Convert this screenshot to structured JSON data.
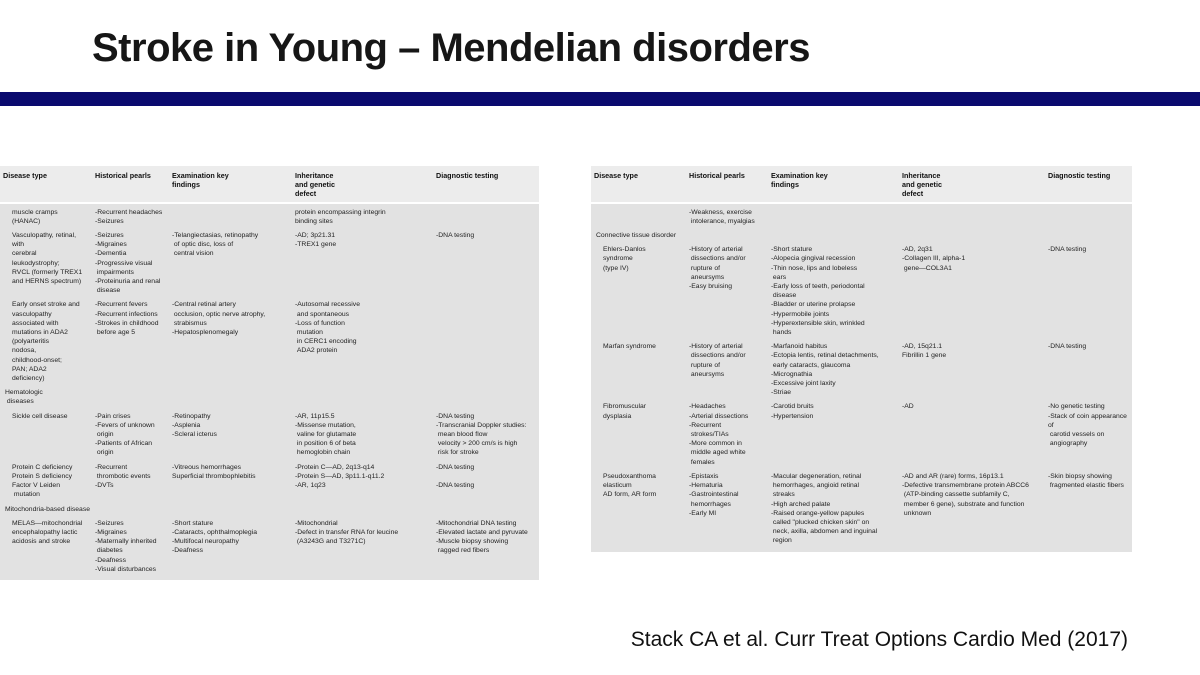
{
  "slide": {
    "title": "Stroke in Young – Mendelian disorders",
    "citation": "Stack CA et al. Curr Treat Options Cardio Med (2017)",
    "accent_bar_color": "#0a0a6e",
    "table_header_bg": "#ececec",
    "table_body_bg": "#e2e2e2"
  },
  "table_headers": [
    "Disease type",
    "Historical pearls",
    "Examination key\nfindings",
    "Inheritance\nand genetic\ndefect",
    "Diagnostic testing"
  ],
  "column_names": [
    "disease-type",
    "historical-pearls",
    "examination-key-findings",
    "inheritance-genetic-defect",
    "diagnostic-testing"
  ],
  "tables": [
    {
      "id": "left",
      "rows": [
        {
          "section": false,
          "cells": [
            "muscle cramps\n(HANAC)",
            "-Recurrent headaches\n-Seizures",
            "",
            "protein encompassing integrin\nbinding sites",
            ""
          ]
        },
        {
          "section": false,
          "cells": [
            "Vasculopathy, retinal,\nwith\ncerebral\nleukodystrophy;\nRVCL (formerly TREX1\nand HERNS spectrum)",
            "-Seizures\n-Migraines\n-Dementia\n-Progressive visual\n impairments\n-Proteinuria and renal\n disease",
            "-Telangiectasias, retinopathy\n of optic disc, loss of\n central vision",
            "-AD; 3p21.31\n-TREX1 gene",
            "-DNA testing"
          ]
        },
        {
          "section": false,
          "cells": [
            "Early onset stroke and\nvasculopathy\nassociated with\nmutations in ADA2\n(polyarteritis\nnodosa,\nchildhood-onset;\nPAN; ADA2\ndeficiency)",
            "-Recurrent fevers\n-Recurrent infections\n-Strokes in childhood\n before age 5",
            "-Central retinal artery\n occlusion, optic nerve atrophy,\n strabismus\n-Hepatosplenomegaly",
            "-Autosomal recessive\n and spontaneous\n-Loss of function\n mutation\n in CERC1 encoding\n ADA2 protein",
            ""
          ]
        },
        {
          "section": true,
          "cells": [
            "Hematologic\n diseases",
            "",
            "",
            "",
            ""
          ]
        },
        {
          "section": false,
          "cells": [
            "Sickle cell disease",
            "-Pain crises\n-Fevers of unknown\n origin\n-Patients of African\n origin",
            "-Retinopathy\n-Asplenia\n-Scleral icterus",
            "-AR, 11p15.5\n-Missense mutation,\n valine for glutamate\n in position 6 of beta\n hemoglobin chain",
            "-DNA testing\n-Transcranial Doppler studies:\n mean blood flow\n velocity > 200 cm/s is high\n risk for stroke"
          ]
        },
        {
          "section": false,
          "cells": [
            "Protein C deficiency\nProtein S deficiency\nFactor V Leiden\n mutation",
            "-Recurrent\n thrombotic events\n-DVTs",
            "-Vitreous hemorrhages\nSuperficial thrombophlebitis",
            "-Protein C—AD, 2q13-q14\n-Protein S—AD, 3p11.1-q11.2\n-AR, 1q23",
            "-DNA testing\n\n-DNA testing"
          ]
        },
        {
          "section": true,
          "cells": [
            "Mitochondria-based disease",
            "",
            "",
            "",
            ""
          ]
        },
        {
          "section": false,
          "cells": [
            "MELAS—mitochondrial\nencephalopathy lactic\nacidosis and stroke",
            "-Seizures\n-Migraines\n-Maternally inherited\n diabetes\n-Deafness\n-Visual disturbances",
            "-Short stature\n-Cataracts, ophthalmoplegia\n-Multifocal neuropathy\n-Deafness",
            "-Mitochondrial\n-Defect in transfer RNA for leucine\n (A3243G and T3271C)",
            "-Mitochondrial DNA testing\n-Elevated lactate and pyruvate\n-Muscle biopsy showing\n ragged red fibers"
          ]
        }
      ]
    },
    {
      "id": "right",
      "rows": [
        {
          "section": false,
          "cells": [
            "",
            "-Weakness, exercise\n intolerance, myalgias",
            "",
            "",
            ""
          ]
        },
        {
          "section": true,
          "cells": [
            "Connective tissue disorder",
            "",
            "",
            "",
            ""
          ]
        },
        {
          "section": false,
          "cells": [
            "Ehlers-Danlos\nsyndrome\n(type IV)",
            "-History of arterial\n dissections and/or\n rupture of\n aneursyms\n-Easy bruising",
            "-Short stature\n-Alopecia gingival recession\n-Thin nose, lips and lobeless\n ears\n-Early loss of teeth, periodontal\n disease\n-Bladder or uterine prolapse\n-Hypermobile joints\n-Hyperextensible skin, wrinkled\n hands",
            "-AD, 2q31\n-Collagen III, alpha-1\n gene—COL3A1",
            "-DNA testing"
          ]
        },
        {
          "section": false,
          "cells": [
            "Marfan syndrome",
            "-History of arterial\n dissections and/or\n rupture of\n aneursyms",
            "-Marfanoid habitus\n-Ectopia lentis, retinal detachments,\n early cataracts, glaucoma\n-Micrognathia\n-Excessive joint laxity\n-Striae",
            "-AD, 15q21.1\nFibrillin 1 gene",
            "-DNA testing"
          ]
        },
        {
          "section": false,
          "cells": [
            "Fibromuscular\ndysplasia",
            "-Headaches\n-Arterial dissections\n-Recurrent\n strokes/TIAs\n-More common in\n middle aged white\n females",
            "-Carotid bruits\n-Hypertension",
            "-AD",
            "-No genetic testing\n-Stack of coin appearance of\n carotid vessels on\n angiography"
          ]
        },
        {
          "section": false,
          "cells": [
            "Pseudoxanthoma\nelasticum\nAD form, AR form",
            "-Epistaxis\n-Hematuria\n-Gastrointestinal\n hemorrhages\n-Early MI",
            "-Macular degeneration, retinal\n hemorrhages, angioid retinal\n streaks\n-High arched palate\n-Raised orange-yellow papules\n called \"plucked chicken skin\" on\n neck, axilla, abdomen and inguinal\n region",
            "-AD and AR (rare) forms, 16p13.1\n-Defective transmembrane protein ABCC6\n (ATP-binding cassette subfamily C,\n member 6 gene), substrate and function\n unknown",
            "-Skin biopsy showing\n fragmented elastic fibers"
          ]
        }
      ]
    }
  ]
}
